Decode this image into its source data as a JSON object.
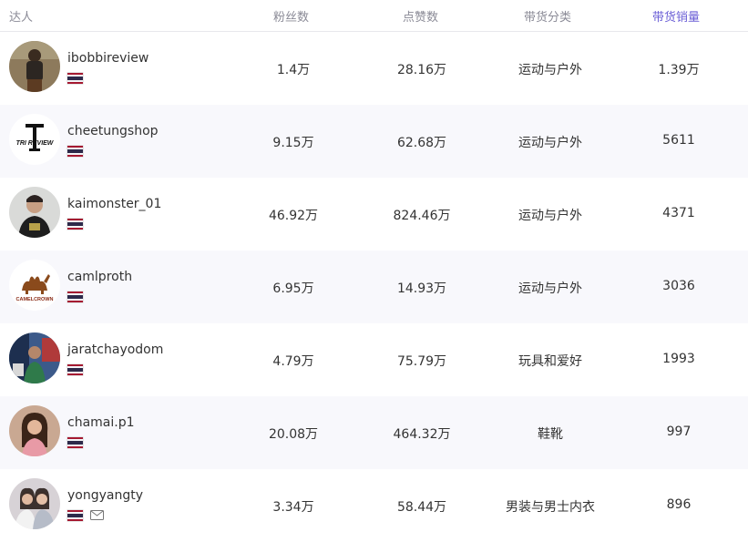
{
  "columns": {
    "talent": "达人",
    "fans": "粉丝数",
    "likes": "点赞数",
    "category": "带货分类",
    "sales": "带货销量"
  },
  "colors": {
    "accent": "#6b5fd6",
    "alt_row": "#f8f8fc",
    "header_text": "#8a8a96"
  },
  "rows": [
    {
      "name": "ibobbireview",
      "fans": "1.4万",
      "likes": "28.16万",
      "category": "运动与户外",
      "sales": "1.39万",
      "flag": "thailand-flag-icon",
      "avatar": "photo"
    },
    {
      "name": "cheetungshop",
      "fans": "9.15万",
      "likes": "62.68万",
      "category": "运动与户外",
      "sales": "5611",
      "flag": "thailand-flag-icon",
      "avatar": "logo",
      "logo_text": "TRI REVIEW"
    },
    {
      "name": "kaimonster_01",
      "fans": "46.92万",
      "likes": "824.46万",
      "category": "运动与户外",
      "sales": "4371",
      "flag": "thailand-flag-icon",
      "avatar": "photo"
    },
    {
      "name": "camlproth",
      "fans": "6.95万",
      "likes": "14.93万",
      "category": "运动与户外",
      "sales": "3036",
      "flag": "thailand-flag-icon",
      "avatar": "logo",
      "logo_text": "CAMELCROWN"
    },
    {
      "name": "jaratchayodom",
      "fans": "4.79万",
      "likes": "75.79万",
      "category": "玩具和爱好",
      "sales": "1993",
      "flag": "thailand-flag-icon",
      "avatar": "photo"
    },
    {
      "name": "chamai.p1",
      "fans": "20.08万",
      "likes": "464.32万",
      "category": "鞋靴",
      "sales": "997",
      "flag": "thailand-flag-icon",
      "avatar": "photo"
    },
    {
      "name": "yongyangty",
      "fans": "3.34万",
      "likes": "58.44万",
      "category": "男装与男士内衣",
      "sales": "896",
      "flag": "thailand-flag-icon",
      "avatar": "photo",
      "extra_icon": "mail-icon"
    }
  ]
}
